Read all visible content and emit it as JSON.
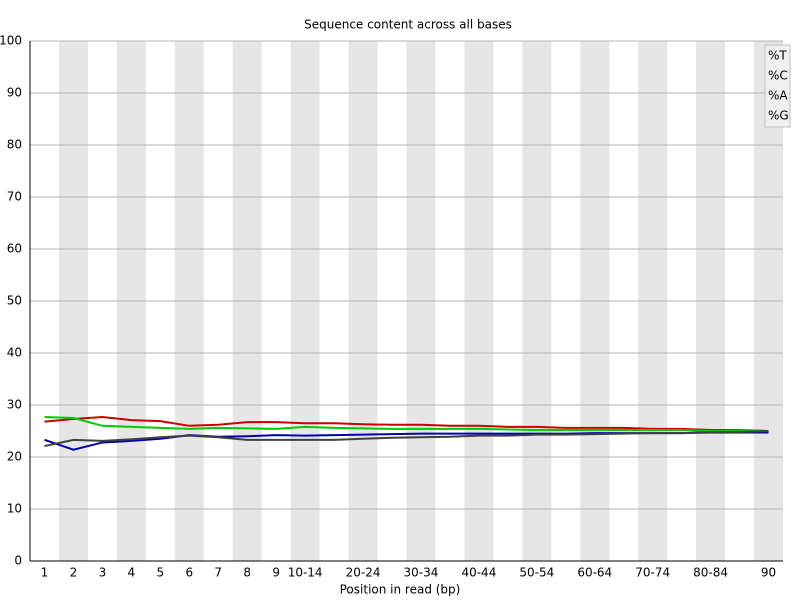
{
  "chart_data": {
    "type": "line",
    "title": "Sequence content across all bases",
    "x_label": "Position in read (bp)",
    "categories": [
      "1",
      "2",
      "3",
      "4",
      "5",
      "6",
      "7",
      "8",
      "9",
      "10-14",
      null,
      "20-24",
      null,
      "30-34",
      null,
      "40-44",
      null,
      "50-54",
      null,
      "60-64",
      null,
      "70-74",
      null,
      "80-84",
      null,
      "90"
    ],
    "series": [
      {
        "name": "%T",
        "color": "#cc0000",
        "values": [
          26.8,
          27.3,
          27.7,
          27.1,
          26.9,
          26.0,
          26.2,
          26.7,
          26.7,
          26.5,
          26.5,
          26.3,
          26.2,
          26.2,
          26.0,
          26.0,
          25.8,
          25.8,
          25.6,
          25.6,
          25.6,
          25.4,
          25.4,
          25.2,
          25.2,
          25.0
        ]
      },
      {
        "name": "%C",
        "color": "#0000b3",
        "values": [
          23.3,
          21.4,
          22.8,
          23.1,
          23.5,
          24.2,
          23.9,
          24.0,
          24.2,
          24.1,
          24.2,
          24.3,
          24.4,
          24.5,
          24.5,
          24.5,
          24.5,
          24.5,
          24.5,
          24.6,
          24.6,
          24.6,
          24.6,
          24.7,
          24.7,
          24.7
        ]
      },
      {
        "name": "%A",
        "color": "#00cc00",
        "values": [
          27.7,
          27.5,
          26.0,
          25.8,
          25.6,
          25.4,
          25.6,
          25.5,
          25.4,
          25.8,
          25.6,
          25.5,
          25.4,
          25.4,
          25.4,
          25.4,
          25.3,
          25.2,
          25.2,
          25.2,
          25.2,
          25.2,
          25.2,
          25.0,
          25.1,
          25.0
        ]
      },
      {
        "name": "%G",
        "color": "#404040",
        "values": [
          22.1,
          23.3,
          23.1,
          23.4,
          23.8,
          24.1,
          23.8,
          23.3,
          23.3,
          23.3,
          23.3,
          23.5,
          23.7,
          23.8,
          23.9,
          24.1,
          24.1,
          24.3,
          24.3,
          24.4,
          24.5,
          24.6,
          24.6,
          24.8,
          24.8,
          25.0
        ]
      }
    ],
    "ylim": [
      0,
      100
    ],
    "yticks": [
      0,
      10,
      20,
      30,
      40,
      50,
      60,
      70,
      80,
      90,
      100
    ],
    "grid": true,
    "legend": "top-right"
  }
}
